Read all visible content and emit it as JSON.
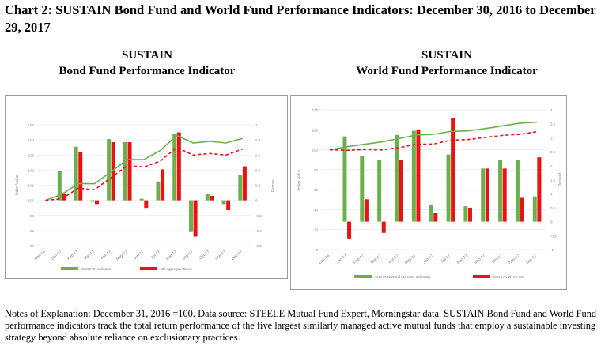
{
  "header": {
    "title": "Chart 2:  SUSTAIN Bond Fund and World Fund Performance Indicators:  December 30, 2016 to December 29, 2017"
  },
  "subtitles": {
    "left": [
      "SUSTAIN",
      "Bond Fund Performance Indicator"
    ],
    "right": [
      "SUSTAIN",
      "World Fund Performance Indicator"
    ]
  },
  "notes": "Notes of Explanation:  December 31, 2016 =100.  Data source:  STEELE Mutual Fund Expert, Morningstar data.  SUSTAIN Bond Fund and World Fund performance indicators track the total return performance of the five largest similarly managed active mutual funds that employ a sustainable investing strategy beyond absolute reliance on exclusionary practices.",
  "chart_data": [
    {
      "type": "bar",
      "title": "",
      "categories": [
        "Dec-16",
        "Jan-17",
        "Feb-17",
        "Mar-17",
        "Apr-17",
        "May-17",
        "Jun-17",
        "Jul-17",
        "Aug-17",
        "Sep-17",
        "Oct-17",
        "Nov-17",
        "Dec-17"
      ],
      "ylabel": "Index Value",
      "y2label": "Percent",
      "ylim": [
        97,
        105
      ],
      "y2lim": [
        -0.6,
        1
      ],
      "yticks": [
        "97",
        "98",
        "99",
        "100",
        "101",
        "102",
        "103",
        "104",
        "105"
      ],
      "y2ticks": [
        "-0.6",
        "-0.4",
        "-0.2",
        "0",
        "0.2",
        "0.4",
        "0.6",
        "0.8",
        "1"
      ],
      "legend_position": "bottom",
      "colors": {
        "green": "#6ab04c",
        "red": "#ee1111"
      },
      "series": [
        {
          "name": "SUSTAIN Indicator",
          "kind": "bar",
          "axis": "right",
          "color": "#6ab04c",
          "values": [
            0,
            0.39,
            0.71,
            -0.02,
            0.81,
            0.77,
            0.02,
            0.25,
            0.88,
            -0.42,
            0.09,
            -0.05,
            0.33
          ]
        },
        {
          "name": "BB Aggregate Bond",
          "kind": "bar",
          "axis": "right",
          "color": "#ee1111",
          "values": [
            0,
            0.09,
            0.64,
            -0.05,
            0.77,
            0.77,
            -0.1,
            0.41,
            0.9,
            -0.48,
            0.06,
            -0.13,
            0.45
          ]
        },
        {
          "kind": "line",
          "axis": "left",
          "color": "#6ab04c",
          "dash": false,
          "values": [
            100,
            100.4,
            101.1,
            101.1,
            101.9,
            102.7,
            102.7,
            103.3,
            104.3,
            103.8,
            103.9,
            103.8,
            104.1
          ]
        },
        {
          "kind": "line",
          "axis": "left",
          "color": "#ee1111",
          "dash": true,
          "values": [
            100,
            100.1,
            100.8,
            100.7,
            101.5,
            102.3,
            102.2,
            102.6,
            103.5,
            103.0,
            103.1,
            103.0,
            103.4
          ]
        }
      ]
    },
    {
      "type": "bar",
      "title": "",
      "categories": [
        "Dec-16",
        "Jan-17",
        "Feb-17",
        "Mar-17",
        "Apr-17",
        "May-17",
        "Jun-17",
        "Jul-17",
        "Aug-17",
        "Sep-17",
        "Oct-17",
        "Nov-17",
        "Dec-17"
      ],
      "ylabel": "Index Value",
      "y2label": "Percent",
      "ylim": [
        0,
        140
      ],
      "y2lim": [
        -1,
        4
      ],
      "yticks": [
        "0",
        "20",
        "40",
        "60",
        "80",
        "100",
        "120",
        "140"
      ],
      "y2ticks": [
        "-1",
        "-0.5",
        "0",
        "0.5",
        "1",
        "1.5",
        "2",
        "2.5",
        "3",
        "3.5",
        "4"
      ],
      "legend_position": "bottom",
      "colors": {
        "green": "#6ab04c",
        "red": "#ee1111"
      },
      "series": [
        {
          "name": "SUSTAIN World (as USD Indicator)",
          "kind": "bar",
          "axis": "right",
          "color": "#6ab04c",
          "values": [
            0,
            3.05,
            2.35,
            2.2,
            3.1,
            3.25,
            0.6,
            2.4,
            0.55,
            1.9,
            2.2,
            2.2,
            0.9
          ]
        },
        {
          "name": "MSCI ACWI ex-US",
          "kind": "bar",
          "axis": "right",
          "color": "#ee1111",
          "values": [
            0,
            -0.6,
            0.8,
            -0.4,
            2.2,
            3.3,
            0.3,
            3.7,
            0.5,
            1.9,
            1.9,
            0.85,
            2.3
          ]
        },
        {
          "kind": "line",
          "axis": "left",
          "color": "#6ab04c",
          "dash": false,
          "values": [
            100,
            103,
            105.4,
            107.8,
            111.2,
            114.8,
            115.5,
            118.3,
            118.9,
            121.2,
            123.9,
            126.6,
            127.7
          ]
        },
        {
          "kind": "line",
          "axis": "left",
          "color": "#ee1111",
          "dash": true,
          "values": [
            100,
            99.4,
            100.2,
            99.8,
            102,
            105.4,
            105.7,
            109.6,
            110.2,
            112.3,
            114.4,
            115.4,
            118.1
          ]
        }
      ]
    }
  ]
}
